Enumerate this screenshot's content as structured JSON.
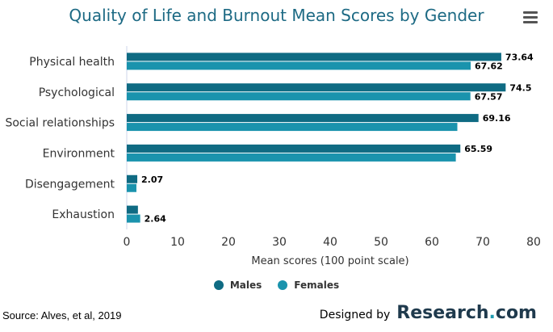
{
  "chart_data": {
    "type": "bar",
    "orientation": "horizontal",
    "title": "Quality of Life and Burnout Mean Scores by Gender",
    "xlabel": "Mean scores (100 point scale)",
    "categories": [
      "Physical health",
      "Psychological",
      "Social relationships",
      "Environment",
      "Disengagement",
      "Exhaustion"
    ],
    "series": [
      {
        "name": "Males",
        "values": [
          73.64,
          74.5,
          69.16,
          65.59,
          2.07,
          2.2
        ],
        "labels": [
          "73.64",
          "74.5",
          "69.16",
          "65.59",
          "2.07",
          ""
        ]
      },
      {
        "name": "Females",
        "values": [
          67.62,
          67.57,
          65.0,
          64.7,
          1.9,
          2.64
        ],
        "labels": [
          "67.62",
          "67.57",
          "",
          "",
          "",
          "2.64"
        ]
      }
    ],
    "xlim": [
      0,
      80
    ],
    "xticks": [
      0,
      10,
      20,
      30,
      40,
      50,
      60,
      70,
      80
    ],
    "grid": false,
    "legend_position": "bottom-center"
  },
  "colors": {
    "Males": "#0f6b83",
    "Females": "#1a93ad"
  },
  "menu_icon": "hamburger-menu-icon",
  "source": "Source: Alves, et al, 2019",
  "credit": {
    "prefix": "Designed by",
    "logo_main": "Research",
    "logo_dot": ".",
    "logo_suffix": "com"
  }
}
